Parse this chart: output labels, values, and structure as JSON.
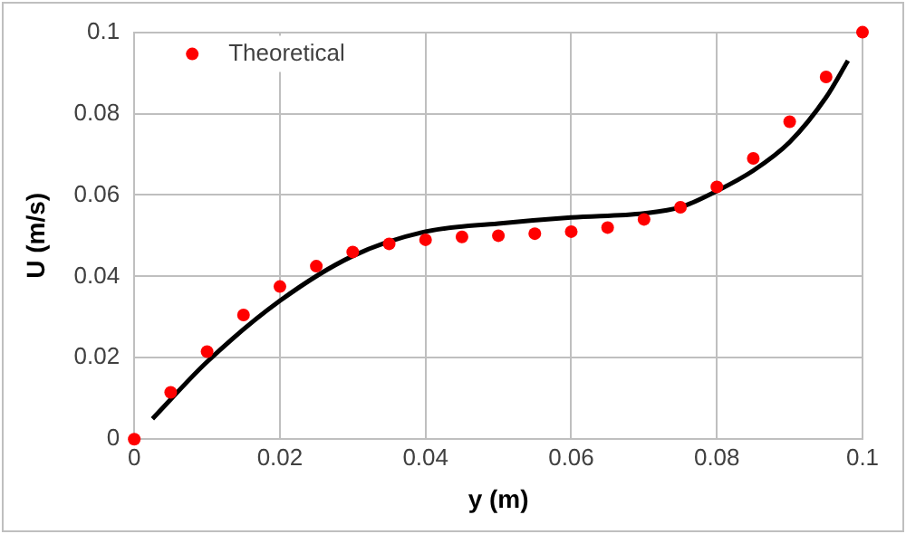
{
  "chart_data": {
    "type": "scatter",
    "xlabel": "y (m)",
    "ylabel": "U (m/s)",
    "xlim": [
      0,
      0.1
    ],
    "ylim": [
      0,
      0.1
    ],
    "xticks": [
      0,
      0.02,
      0.04,
      0.06,
      0.08,
      0.1
    ],
    "yticks": [
      0,
      0.02,
      0.04,
      0.06,
      0.08,
      0.1
    ],
    "grid": true,
    "legend": "top left",
    "series": [
      {
        "type": "line",
        "color": "#000000",
        "marker": "none",
        "x": [
          0.0025,
          0.01,
          0.02,
          0.03,
          0.04,
          0.05,
          0.06,
          0.07,
          0.075,
          0.08,
          0.085,
          0.09,
          0.095,
          0.098
        ],
        "values": [
          0.005,
          0.019,
          0.034,
          0.045,
          0.051,
          0.053,
          0.0545,
          0.0555,
          0.057,
          0.061,
          0.066,
          0.073,
          0.084,
          0.093
        ]
      },
      {
        "type": "scatter",
        "name": "Theoretical",
        "color": "#ff0000",
        "marker": "circle",
        "x": [
          0,
          0.005,
          0.01,
          0.015,
          0.02,
          0.025,
          0.03,
          0.035,
          0.04,
          0.045,
          0.05,
          0.055,
          0.06,
          0.065,
          0.07,
          0.075,
          0.08,
          0.085,
          0.09,
          0.095,
          0.1
        ],
        "values": [
          0,
          0.0115,
          0.0215,
          0.0305,
          0.0375,
          0.0425,
          0.046,
          0.048,
          0.049,
          0.0497,
          0.05,
          0.0505,
          0.051,
          0.052,
          0.054,
          0.057,
          0.062,
          0.069,
          0.078,
          0.089,
          0.1
        ]
      }
    ]
  }
}
